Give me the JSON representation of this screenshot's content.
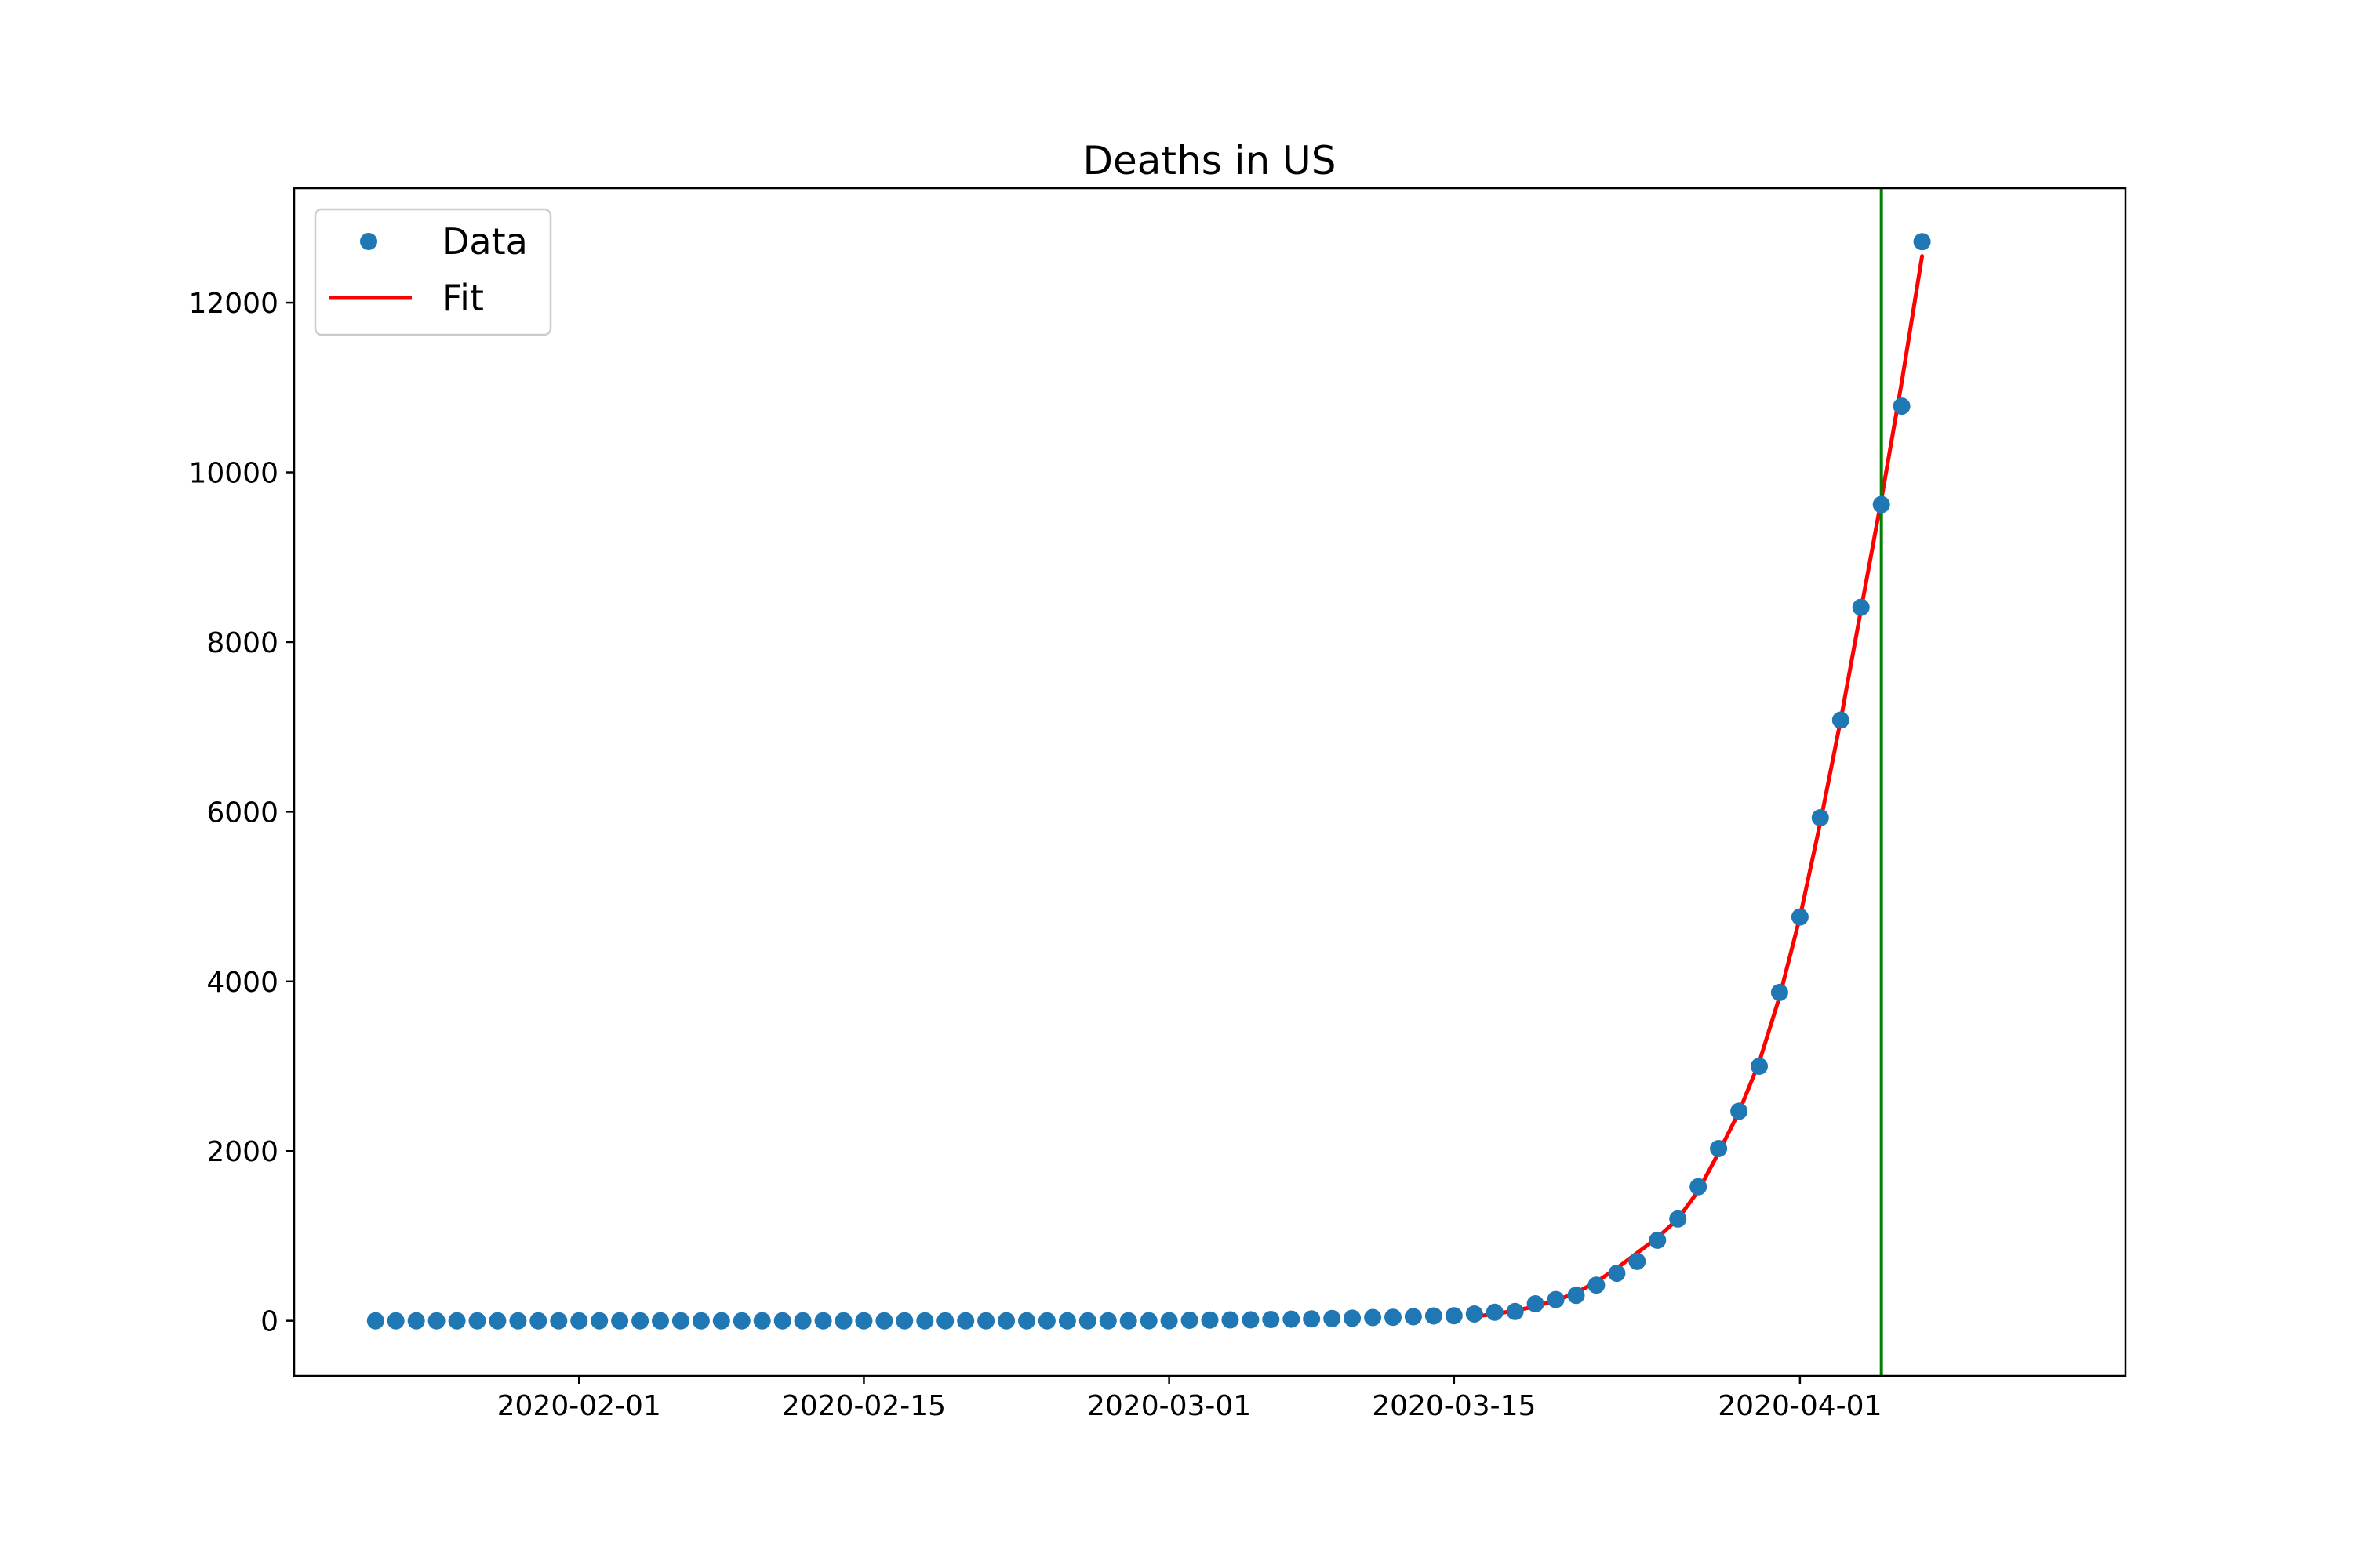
{
  "chart_data": {
    "type": "scatter",
    "title": "Deaths in US",
    "xlabel": "",
    "ylabel": "",
    "x_axis": {
      "type": "date",
      "range": [
        "2020-01-18",
        "2020-04-17"
      ],
      "ticks": [
        "2020-02-01",
        "2020-02-15",
        "2020-03-01",
        "2020-03-15",
        "2020-04-01"
      ]
    },
    "y_axis": {
      "range": [
        -650,
        13350
      ],
      "ticks": [
        0,
        2000,
        4000,
        6000,
        8000,
        10000,
        12000
      ],
      "tick_labels": [
        "0",
        "2000",
        "4000",
        "6000",
        "8000",
        "10000",
        "12000"
      ]
    },
    "grid": false,
    "legend_position": "top-left",
    "legend": [
      {
        "label": "Data",
        "marker": "dot",
        "color": "#1f77b4"
      },
      {
        "label": "Fit",
        "marker": "line",
        "color": "#ff0000"
      }
    ],
    "series": [
      {
        "name": "Data",
        "kind": "scatter",
        "color": "#1f77b4",
        "x": [
          "2020-01-22",
          "2020-01-23",
          "2020-01-24",
          "2020-01-25",
          "2020-01-26",
          "2020-01-27",
          "2020-01-28",
          "2020-01-29",
          "2020-01-30",
          "2020-01-31",
          "2020-02-01",
          "2020-02-02",
          "2020-02-03",
          "2020-02-04",
          "2020-02-05",
          "2020-02-06",
          "2020-02-07",
          "2020-02-08",
          "2020-02-09",
          "2020-02-10",
          "2020-02-11",
          "2020-02-12",
          "2020-02-13",
          "2020-02-14",
          "2020-02-15",
          "2020-02-16",
          "2020-02-17",
          "2020-02-18",
          "2020-02-19",
          "2020-02-20",
          "2020-02-21",
          "2020-02-22",
          "2020-02-23",
          "2020-02-24",
          "2020-02-25",
          "2020-02-26",
          "2020-02-27",
          "2020-02-28",
          "2020-02-29",
          "2020-03-01",
          "2020-03-02",
          "2020-03-03",
          "2020-03-04",
          "2020-03-05",
          "2020-03-06",
          "2020-03-07",
          "2020-03-08",
          "2020-03-09",
          "2020-03-10",
          "2020-03-11",
          "2020-03-12",
          "2020-03-13",
          "2020-03-14",
          "2020-03-15",
          "2020-03-16",
          "2020-03-17",
          "2020-03-18",
          "2020-03-19",
          "2020-03-20",
          "2020-03-21",
          "2020-03-22",
          "2020-03-23",
          "2020-03-24",
          "2020-03-25",
          "2020-03-26",
          "2020-03-27",
          "2020-03-28",
          "2020-03-29",
          "2020-03-30",
          "2020-03-31",
          "2020-04-01",
          "2020-04-02",
          "2020-04-03",
          "2020-04-04",
          "2020-04-05",
          "2020-04-06",
          "2020-04-07"
        ],
        "y": [
          0,
          0,
          0,
          0,
          0,
          0,
          0,
          0,
          0,
          0,
          0,
          0,
          0,
          0,
          0,
          0,
          0,
          0,
          0,
          0,
          0,
          0,
          0,
          0,
          0,
          0,
          0,
          0,
          0,
          0,
          0,
          0,
          0,
          0,
          0,
          0,
          0,
          0,
          1,
          1,
          6,
          9,
          11,
          12,
          15,
          19,
          22,
          26,
          30,
          38,
          41,
          48,
          57,
          60,
          80,
          100,
          110,
          200,
          250,
          300,
          420,
          560,
          700,
          950,
          1200,
          1580,
          2030,
          2470,
          3000,
          3870,
          4760,
          5930,
          7080,
          8410,
          9620,
          10780,
          12720
        ]
      },
      {
        "name": "Fit",
        "kind": "line",
        "color": "#ff0000",
        "x": [
          "2020-03-16",
          "2020-03-17",
          "2020-03-18",
          "2020-03-19",
          "2020-03-20",
          "2020-03-21",
          "2020-03-22",
          "2020-03-23",
          "2020-03-24",
          "2020-03-25",
          "2020-03-26",
          "2020-03-27",
          "2020-03-28",
          "2020-03-29",
          "2020-03-30",
          "2020-03-31",
          "2020-04-01",
          "2020-04-02",
          "2020-04-03",
          "2020-04-04",
          "2020-04-05",
          "2020-04-06",
          "2020-04-07"
        ],
        "y": [
          50,
          80,
          120,
          170,
          240,
          330,
          460,
          620,
          800,
          980,
          1200,
          1530,
          1980,
          2460,
          3050,
          3820,
          4760,
          5870,
          7080,
          8380,
          9680,
          11060,
          12550
        ]
      }
    ],
    "vertical_line": {
      "x": "2020-04-05",
      "color": "#008000"
    }
  }
}
